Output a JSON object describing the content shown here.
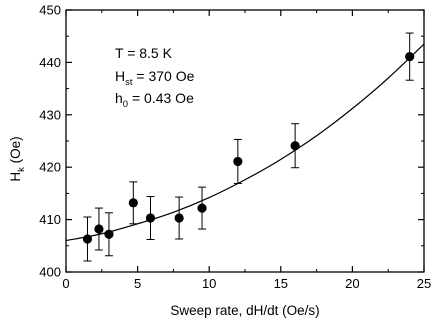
{
  "chart_data": {
    "type": "scatter",
    "xlabel": "Sweep rate, dH/dt (Oe/s)",
    "ylabel_main": "H",
    "ylabel_sub": "k",
    "ylabel_unit": " (Oe)",
    "xlim": [
      0,
      25
    ],
    "ylim": [
      400,
      450
    ],
    "xticks": [
      0,
      5,
      10,
      15,
      20,
      25
    ],
    "yticks": [
      400,
      410,
      420,
      430,
      440,
      450
    ],
    "grid": false,
    "points": [
      {
        "x": 1.5,
        "y": 406.3,
        "err": 4.2
      },
      {
        "x": 2.3,
        "y": 408.2,
        "err": 4.0
      },
      {
        "x": 3.0,
        "y": 407.2,
        "err": 4.1
      },
      {
        "x": 4.7,
        "y": 413.2,
        "err": 4.0
      },
      {
        "x": 5.9,
        "y": 410.3,
        "err": 4.1
      },
      {
        "x": 7.9,
        "y": 410.3,
        "err": 4.0
      },
      {
        "x": 9.5,
        "y": 412.2,
        "err": 4.0
      },
      {
        "x": 12.0,
        "y": 421.1,
        "err": 4.2
      },
      {
        "x": 16.0,
        "y": 424.1,
        "err": 4.2
      },
      {
        "x": 24.0,
        "y": 441.1,
        "err": 4.5
      }
    ],
    "fit_curve": {
      "x": [
        0,
        2.5,
        5,
        7.5,
        10,
        12.5,
        15,
        17.5,
        20,
        22.5,
        25
      ],
      "y": [
        406.0,
        407.3,
        409.2,
        411.4,
        414.2,
        417.6,
        421.5,
        426.0,
        431.2,
        437.0,
        443.5
      ]
    },
    "annotations": [
      {
        "main": "T  = 8.5 K",
        "sub": "",
        "rest": ""
      },
      {
        "main": "H",
        "sub": "st",
        "rest": " = 370 Oe"
      },
      {
        "main": "h",
        "sub": "0",
        "rest": " = 0.43 Oe"
      }
    ]
  }
}
